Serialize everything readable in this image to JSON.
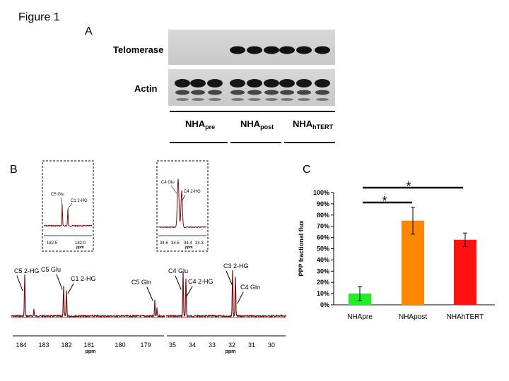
{
  "figure_title": "Figure 1",
  "panel_a": {
    "label": "A",
    "rows": [
      "Telomerase",
      "Actin"
    ],
    "groups": [
      {
        "main": "NHA",
        "sub": "pre"
      },
      {
        "main": "NHA",
        "sub": "post"
      },
      {
        "main": "NHA",
        "sub": "hTERT"
      }
    ]
  },
  "panel_b": {
    "label": "B",
    "left_axis_ticks": [
      "184",
      "183",
      "182",
      "181",
      "180",
      "179"
    ],
    "right_axis_ticks": [
      "35",
      "34",
      "33",
      "32",
      "31",
      "30"
    ],
    "axis_unit": "ppm",
    "peak_labels": [
      "C5 2-HG",
      "C5 Glu",
      "C1 2-HG",
      "C5 Gln",
      "C4 Glu",
      "C4 2-HG",
      "C3 2-HG",
      "C4 Gln"
    ],
    "inset_left": {
      "labels": [
        "C5 Glu",
        "C1 2-HG"
      ],
      "ticks": [
        "182.5",
        "182.0"
      ],
      "unit": "ppm"
    },
    "inset_right": {
      "labels": [
        "C4 Glu",
        "C4 2-HG"
      ],
      "ticks": [
        "34.6",
        "34.5",
        "34.4",
        "34.3"
      ],
      "unit": "ppm"
    }
  },
  "panel_c": {
    "label": "C",
    "significance_marks": [
      "*",
      "*"
    ]
  },
  "chart_data": {
    "type": "bar",
    "categories": [
      "NHApre",
      "NHApost",
      "NHAhTERT"
    ],
    "values": [
      10,
      75,
      58
    ],
    "errors": [
      6,
      12,
      6
    ],
    "colors": [
      "#22ee22",
      "#ff8800",
      "#ff1111"
    ],
    "ylabel": "PPP fractional flux",
    "ylim": [
      0,
      100
    ],
    "yticks": [
      "0%",
      "10%",
      "20%",
      "30%",
      "40%",
      "50%",
      "60%",
      "70%",
      "80%",
      "90%",
      "100%"
    ]
  }
}
